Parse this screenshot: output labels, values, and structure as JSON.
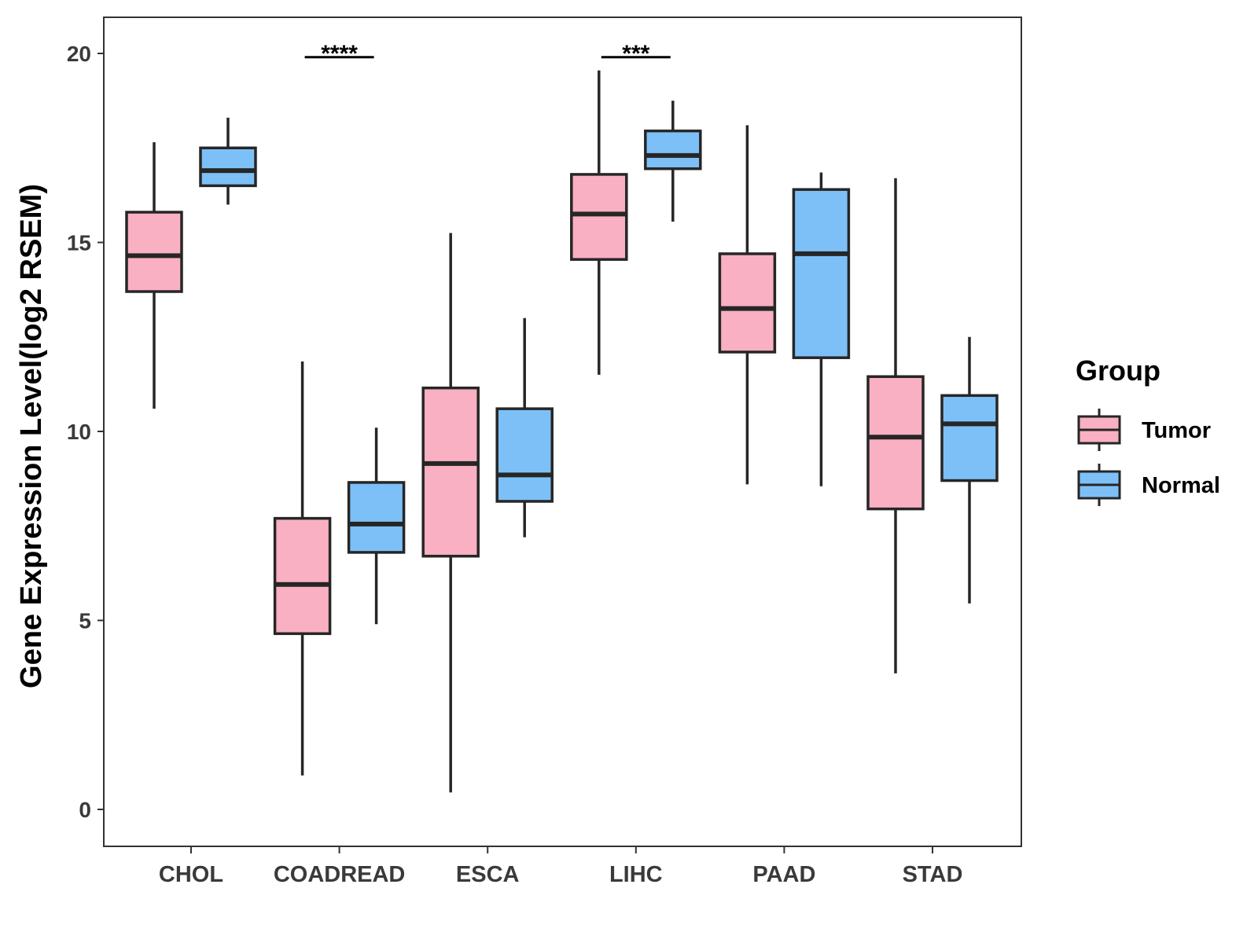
{
  "chart_data": {
    "type": "boxplot",
    "title": "",
    "xlabel": "",
    "ylabel": "Gene Expression Level(log2 RSEM)",
    "ylim": [
      -1,
      21
    ],
    "yticks": [
      0,
      5,
      10,
      15,
      20
    ],
    "categories": [
      "CHOL",
      "COADREAD",
      "ESCA",
      "LIHC",
      "PAAD",
      "STAD"
    ],
    "legend": {
      "title": "Group",
      "position": "right"
    },
    "series": [
      {
        "name": "Tumor",
        "color": "#F9B0C2",
        "boxes": [
          {
            "whisker_low": 10.6,
            "q1": 13.7,
            "median": 14.65,
            "q3": 15.8,
            "whisker_high": 17.65
          },
          {
            "whisker_low": 0.9,
            "q1": 4.65,
            "median": 5.95,
            "q3": 7.7,
            "whisker_high": 11.85
          },
          {
            "whisker_low": 0.45,
            "q1": 6.7,
            "median": 9.15,
            "q3": 11.15,
            "whisker_high": 15.25
          },
          {
            "whisker_low": 11.5,
            "q1": 14.55,
            "median": 15.75,
            "q3": 16.8,
            "whisker_high": 19.55
          },
          {
            "whisker_low": 8.6,
            "q1": 12.1,
            "median": 13.25,
            "q3": 14.7,
            "whisker_high": 18.1
          },
          {
            "whisker_low": 3.6,
            "q1": 7.95,
            "median": 9.85,
            "q3": 11.45,
            "whisker_high": 16.7
          }
        ]
      },
      {
        "name": "Normal",
        "color": "#7DC0F7",
        "boxes": [
          {
            "whisker_low": 16.0,
            "q1": 16.5,
            "median": 16.9,
            "q3": 17.5,
            "whisker_high": 18.3
          },
          {
            "whisker_low": 4.9,
            "q1": 6.8,
            "median": 7.55,
            "q3": 8.65,
            "whisker_high": 10.1
          },
          {
            "whisker_low": 7.2,
            "q1": 8.15,
            "median": 8.85,
            "q3": 10.6,
            "whisker_high": 13.0
          },
          {
            "whisker_low": 15.55,
            "q1": 16.95,
            "median": 17.3,
            "q3": 17.95,
            "whisker_high": 18.75
          },
          {
            "whisker_low": 8.55,
            "q1": 11.95,
            "median": 14.7,
            "q3": 16.4,
            "whisker_high": 16.85
          },
          {
            "whisker_low": 5.45,
            "q1": 8.7,
            "median": 10.2,
            "q3": 10.95,
            "whisker_high": 12.5
          }
        ]
      }
    ],
    "annotations": [
      {
        "category": "COADREAD",
        "label": "****",
        "y": 19.9
      },
      {
        "category": "LIHC",
        "label": "***",
        "y": 19.9
      }
    ]
  }
}
